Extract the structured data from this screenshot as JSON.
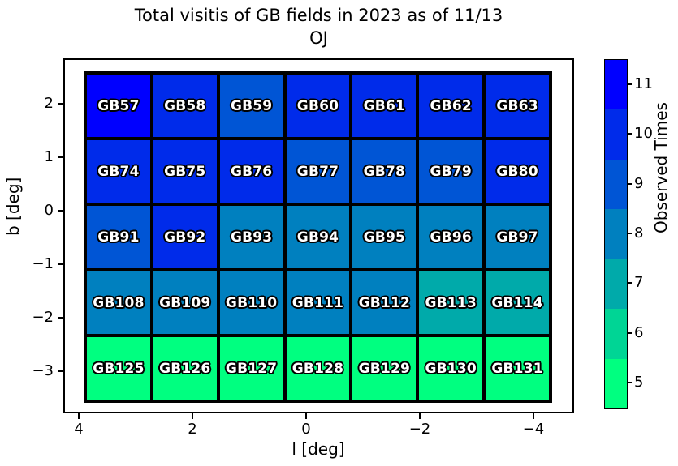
{
  "figure": {
    "title_line1": "Total visitis of GB fields in 2023 as of 11/13",
    "title_line2": "OJ"
  },
  "chart_data": {
    "type": "heatmap",
    "title": "Total visitis of GB fields in 2023 as of 11/13 OJ",
    "xlabel": "l [deg]",
    "ylabel": "b [deg]",
    "colorbar_label": "Observed Times",
    "colormap": "winter_r, discrete 7 bins",
    "value_range": [
      4.5,
      11.5
    ],
    "x_tick_labels": [
      "4",
      "2",
      "0",
      "−2",
      "−4"
    ],
    "y_tick_labels": [
      "2",
      "1",
      "0",
      "−1",
      "−2",
      "−3"
    ],
    "colorbar_tick_labels": [
      "11",
      "10",
      "9",
      "8",
      "7",
      "6",
      "5"
    ],
    "value_colors": {
      "11": "#0000FF",
      "10": "#002BEA",
      "9": "#0055D5",
      "8": "#0080BF",
      "7": "#00AAAA",
      "6": "#00D595",
      "5": "#00FF80"
    },
    "rows": [
      {
        "fields": [
          {
            "label": "GB57",
            "value": 11
          },
          {
            "label": "GB58",
            "value": 10
          },
          {
            "label": "GB59",
            "value": 9
          },
          {
            "label": "GB60",
            "value": 10
          },
          {
            "label": "GB61",
            "value": 10
          },
          {
            "label": "GB62",
            "value": 10
          },
          {
            "label": "GB63",
            "value": 10
          }
        ]
      },
      {
        "fields": [
          {
            "label": "GB74",
            "value": 10
          },
          {
            "label": "GB75",
            "value": 10
          },
          {
            "label": "GB76",
            "value": 10
          },
          {
            "label": "GB77",
            "value": 9
          },
          {
            "label": "GB78",
            "value": 9
          },
          {
            "label": "GB79",
            "value": 9
          },
          {
            "label": "GB80",
            "value": 10
          }
        ]
      },
      {
        "fields": [
          {
            "label": "GB91",
            "value": 9
          },
          {
            "label": "GB92",
            "value": 10
          },
          {
            "label": "GB93",
            "value": 8
          },
          {
            "label": "GB94",
            "value": 8
          },
          {
            "label": "GB95",
            "value": 8
          },
          {
            "label": "GB96",
            "value": 8
          },
          {
            "label": "GB97",
            "value": 8
          }
        ]
      },
      {
        "fields": [
          {
            "label": "GB108",
            "value": 8
          },
          {
            "label": "GB109",
            "value": 8
          },
          {
            "label": "GB110",
            "value": 8
          },
          {
            "label": "GB111",
            "value": 8
          },
          {
            "label": "GB112",
            "value": 8
          },
          {
            "label": "GB113",
            "value": 7
          },
          {
            "label": "GB114",
            "value": 7
          }
        ]
      },
      {
        "fields": [
          {
            "label": "GB125",
            "value": 5
          },
          {
            "label": "GB126",
            "value": 5
          },
          {
            "label": "GB127",
            "value": 5
          },
          {
            "label": "GB128",
            "value": 5
          },
          {
            "label": "GB129",
            "value": 5
          },
          {
            "label": "GB130",
            "value": 5
          },
          {
            "label": "GB131",
            "value": 5
          }
        ]
      }
    ]
  }
}
